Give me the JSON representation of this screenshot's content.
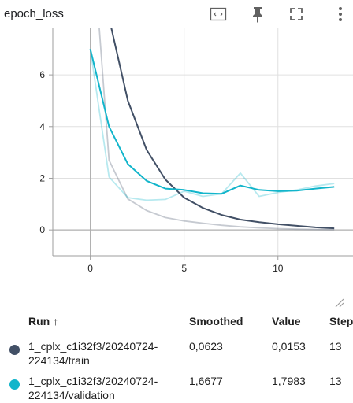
{
  "header": {
    "title": "epoch_loss"
  },
  "chart_data": {
    "type": "line",
    "xlabel": "",
    "ylabel": "",
    "xlim": [
      -2,
      14
    ],
    "ylim": [
      -1,
      7.8
    ],
    "x_ticks": [
      0,
      5,
      10
    ],
    "y_ticks": [
      0,
      2,
      4,
      6
    ],
    "grid": true,
    "series": [
      {
        "name": "1_cplx_c1i32f3/20240724-224134/train",
        "color": "#425066",
        "x": [
          0,
          1,
          2,
          3,
          4,
          5,
          6,
          7,
          8,
          9,
          10,
          11,
          12,
          13
        ],
        "smoothed": [
          12.5,
          8.2,
          5.0,
          3.1,
          1.95,
          1.25,
          0.85,
          0.58,
          0.4,
          0.3,
          0.22,
          0.16,
          0.1,
          0.0623
        ],
        "raw": [
          12.5,
          2.7,
          1.2,
          0.75,
          0.48,
          0.35,
          0.26,
          0.18,
          0.12,
          0.08,
          0.05,
          0.03,
          0.02,
          0.0153
        ]
      },
      {
        "name": "1_cplx_c1i32f3/20240724-224134/validation",
        "color": "#12b5cb",
        "x": [
          0,
          1,
          2,
          3,
          4,
          5,
          6,
          7,
          8,
          9,
          10,
          11,
          12,
          13
        ],
        "smoothed": [
          7.0,
          4.0,
          2.55,
          1.9,
          1.6,
          1.55,
          1.42,
          1.4,
          1.72,
          1.55,
          1.5,
          1.52,
          1.6,
          1.6677
        ],
        "raw": [
          7.0,
          2.05,
          1.25,
          1.15,
          1.18,
          1.5,
          1.3,
          1.4,
          2.2,
          1.3,
          1.45,
          1.55,
          1.7,
          1.7983
        ]
      }
    ]
  },
  "table": {
    "headers": {
      "run": "Run ↑",
      "smoothed": "Smoothed",
      "value": "Value",
      "step": "Step"
    },
    "rows": [
      {
        "run": "1_cplx_c1i32f3/20240724-\n224134/train",
        "smoothed": "0,0623",
        "value": "0,0153",
        "step": "13",
        "color": "#425066"
      },
      {
        "run": "1_cplx_c1i32f3/20240724-\n224134/validation",
        "smoothed": "1,6677",
        "value": "1,7983",
        "step": "13",
        "color": "#12b5cb"
      }
    ]
  }
}
